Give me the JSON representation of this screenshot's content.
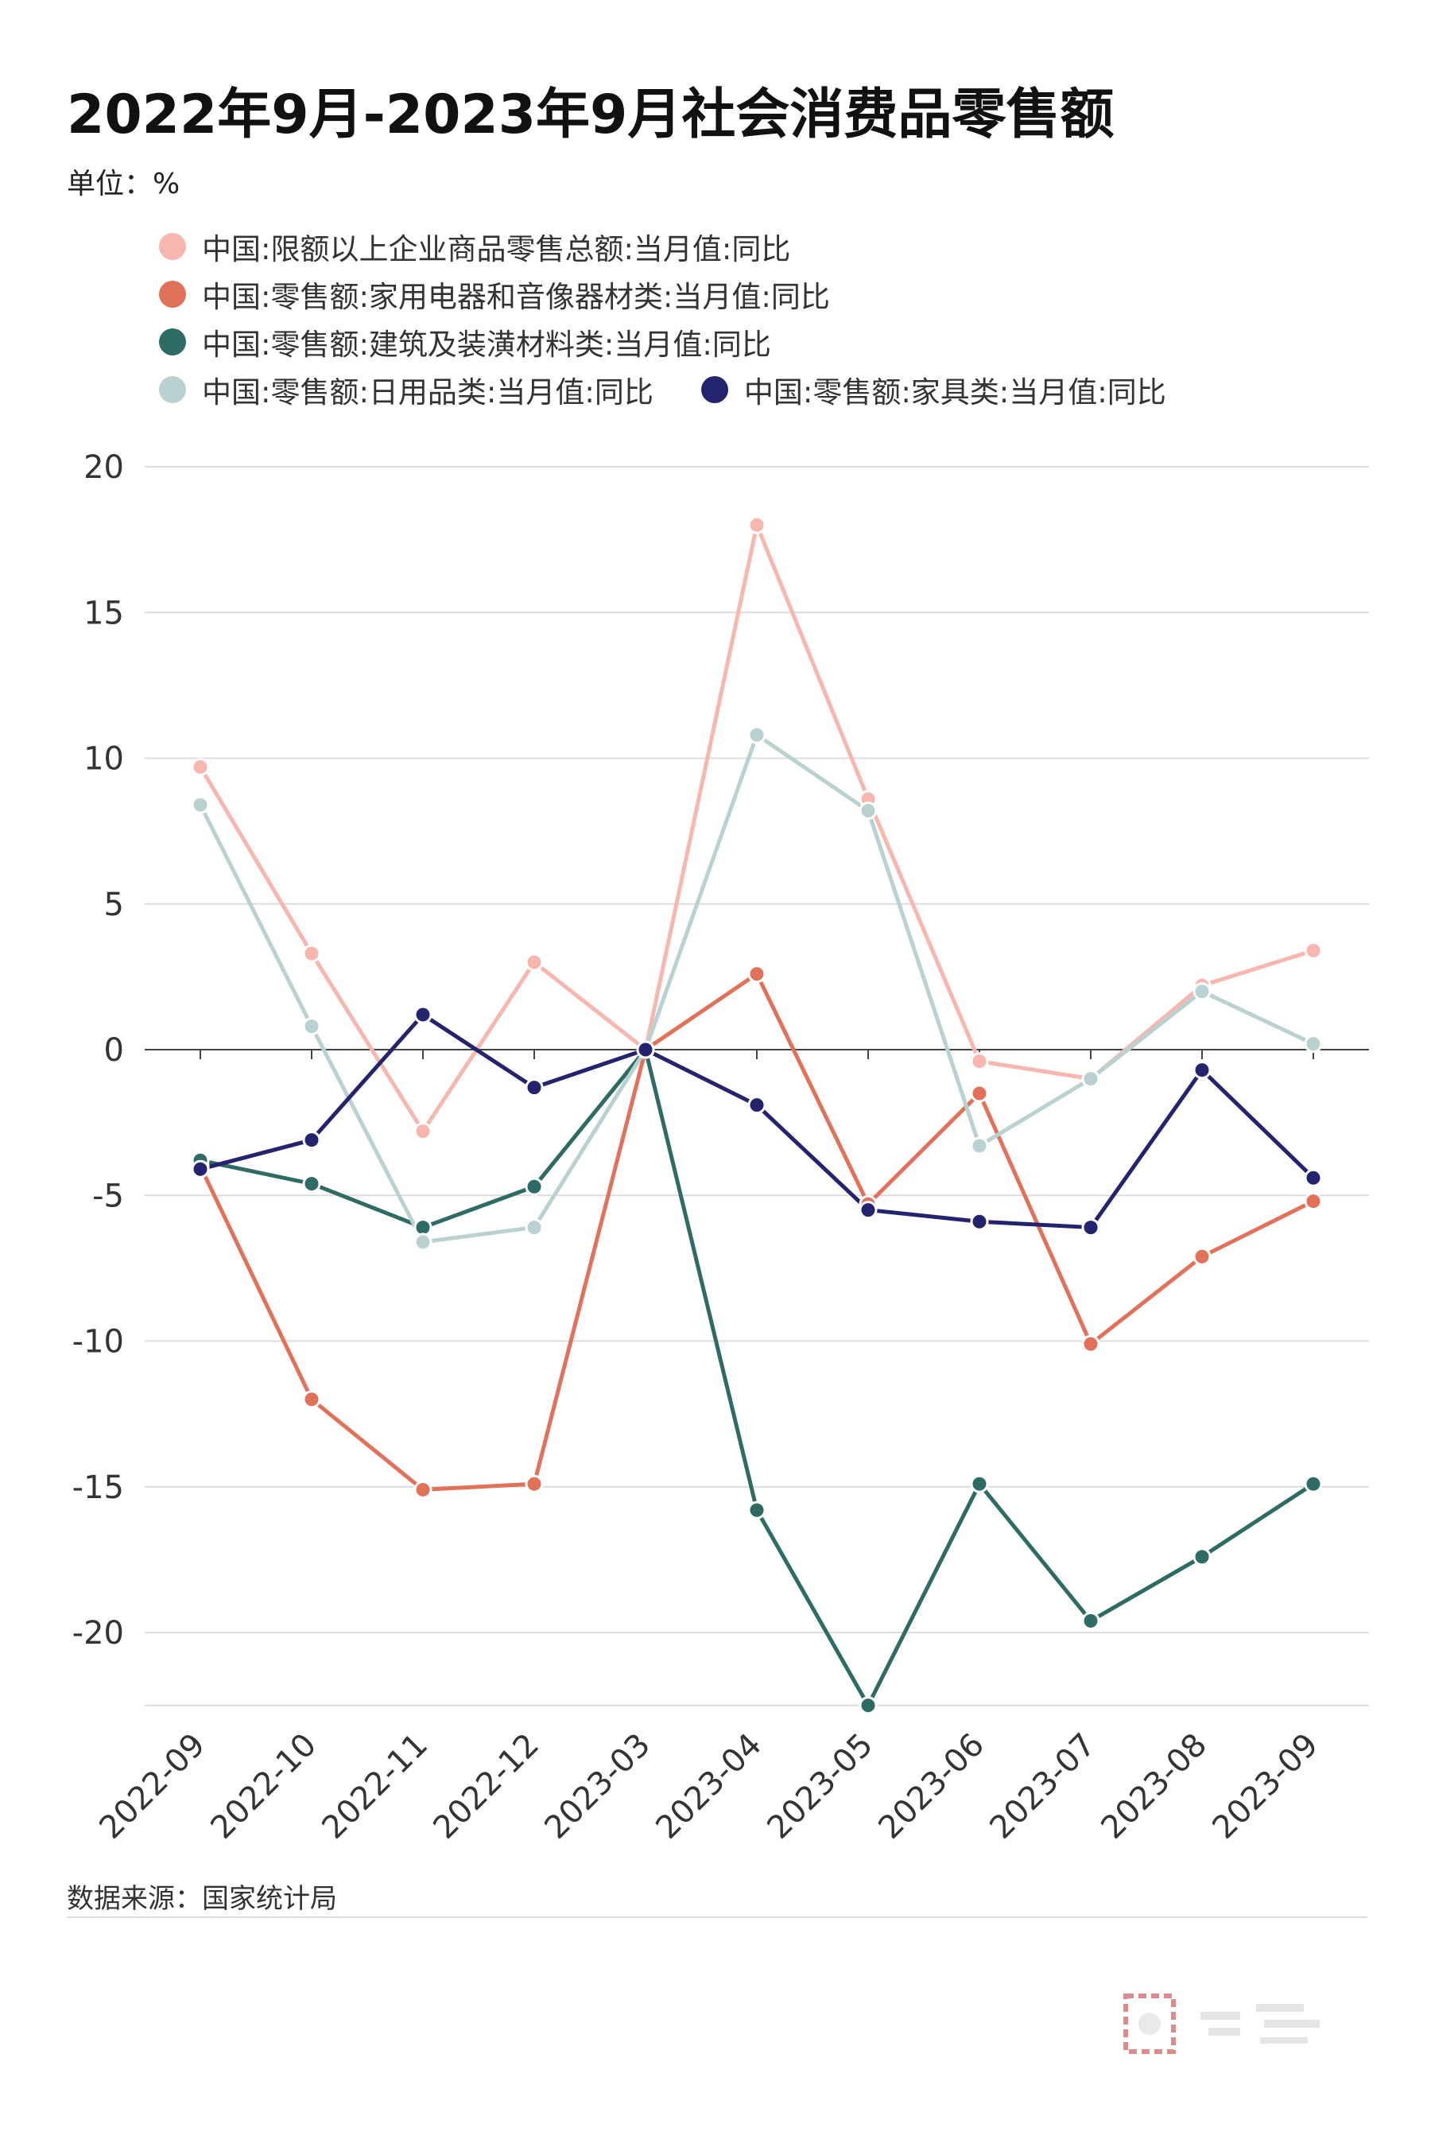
{
  "title": "2022年9月-2023年9月社会消费品零售额",
  "unit": "单位：%",
  "source": "数据来源：国家统计局",
  "chart_data": {
    "type": "line",
    "x": [
      "2022-09",
      "2022-10",
      "2022-11",
      "2022-12",
      "2023-03",
      "2023-04",
      "2023-05",
      "2023-06",
      "2023-07",
      "2023-08",
      "2023-09"
    ],
    "ylim": [
      -22.5,
      20
    ],
    "yticks": [
      20,
      15,
      10,
      5,
      0,
      -5,
      -10,
      -15,
      -20
    ],
    "grid": true,
    "legend_position": "top",
    "series": [
      {
        "name": "中国:限额以上企业商品零售总额:当月值:同比",
        "color": "#f7b6ae",
        "values": [
          9.7,
          3.3,
          -2.8,
          3.0,
          0,
          18.0,
          8.6,
          -0.4,
          -1.0,
          2.2,
          3.4
        ]
      },
      {
        "name": "中国:零售额:家用电器和音像器材类:当月值:同比",
        "color": "#e2715a",
        "values": [
          -4.0,
          -12.0,
          -15.1,
          -14.9,
          0,
          2.6,
          -5.3,
          -1.5,
          -10.1,
          -7.1,
          -5.2
        ]
      },
      {
        "name": "中国:零售额:建筑及装潢材料类:当月值:同比",
        "color": "#2e6b64",
        "values": [
          -3.8,
          -4.6,
          -6.1,
          -4.7,
          0,
          -15.8,
          -22.5,
          -14.9,
          -19.6,
          -17.4,
          -14.9
        ]
      },
      {
        "name": "中国:零售额:日用品类:当月值:同比",
        "color": "#b9d1d1",
        "values": [
          8.4,
          0.8,
          -6.6,
          -6.1,
          0,
          10.8,
          8.2,
          -3.3,
          -1.0,
          2.0,
          0.2
        ]
      },
      {
        "name": "中国:零售额:家具类:当月值:同比",
        "color": "#24246e",
        "values": [
          -4.1,
          -3.1,
          1.2,
          -1.3,
          0,
          -1.9,
          -5.5,
          -5.9,
          -6.1,
          -0.7,
          -4.4
        ]
      }
    ]
  }
}
